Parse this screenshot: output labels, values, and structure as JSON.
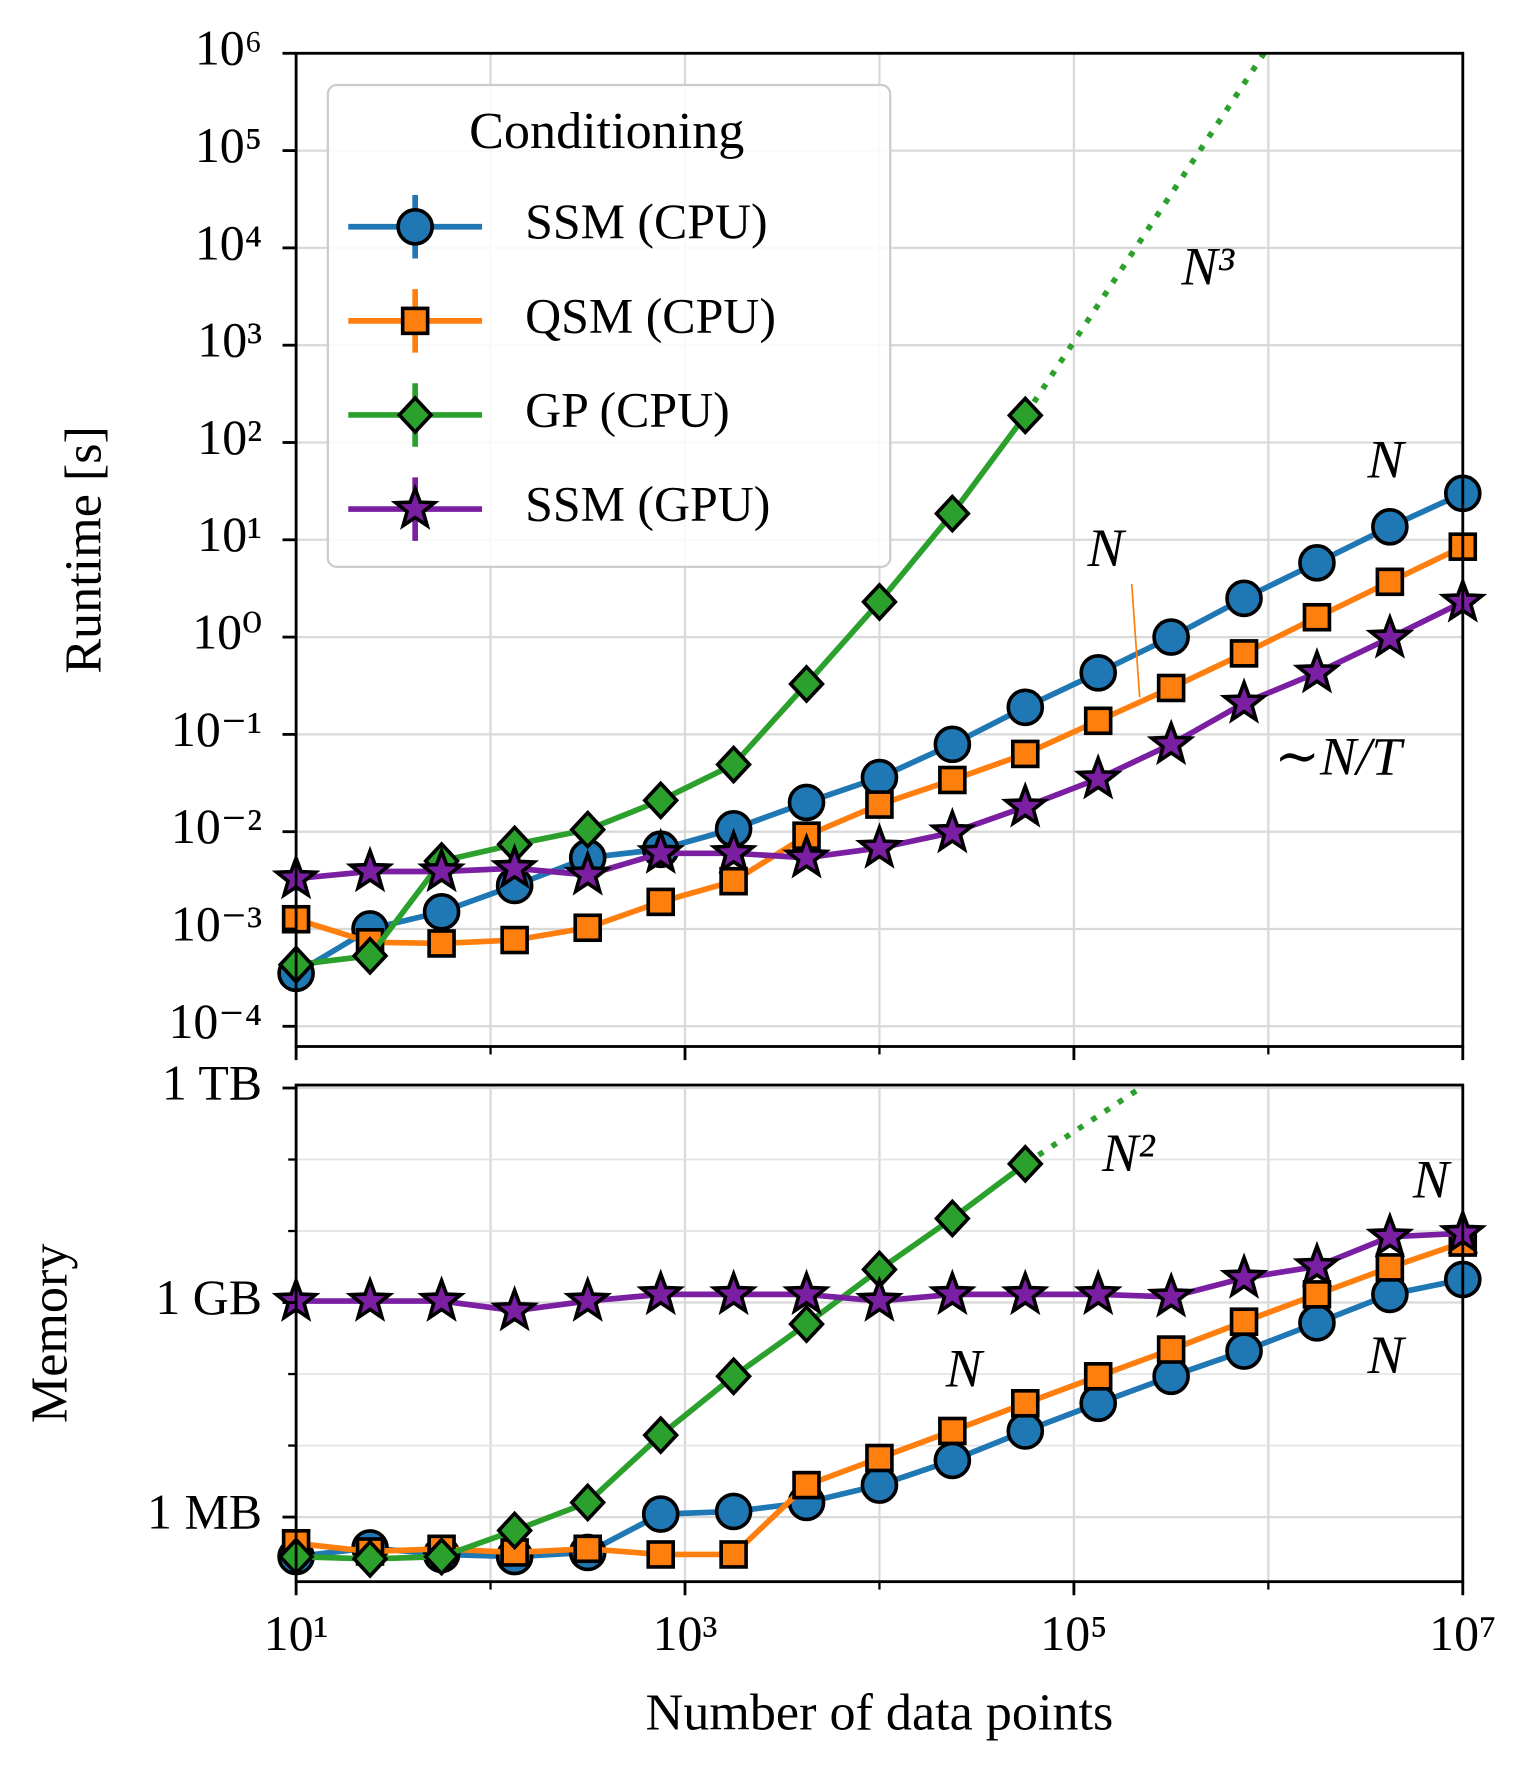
{
  "chart_data": [
    {
      "type": "line",
      "ylabel": "Runtime [s]",
      "xscale": "log",
      "yscale": "log",
      "grid": true,
      "x": [
        10,
        24,
        56,
        133,
        316,
        750,
        1778,
        4217,
        10000,
        23714,
        56234,
        133352,
        316228,
        749894,
        1778279,
        4216965,
        10000000
      ],
      "xlim": [
        10,
        10000000
      ],
      "xticks": [
        10,
        1000,
        100000,
        10000000
      ],
      "xminor": [
        100,
        10000,
        1000000
      ],
      "ylim": [
        6.2e-05,
        1000000
      ],
      "yticks": [
        {
          "value": 0.0001,
          "label": "10⁻⁴"
        },
        {
          "value": 0.001,
          "label": "10⁻³"
        },
        {
          "value": 0.01,
          "label": "10⁻²"
        },
        {
          "value": 0.1,
          "label": "10⁻¹"
        },
        {
          "value": 1,
          "label": "10⁰"
        },
        {
          "value": 10,
          "label": "10¹"
        },
        {
          "value": 100,
          "label": "10²"
        },
        {
          "value": 1000,
          "label": "10³"
        },
        {
          "value": 10000,
          "label": "10⁴"
        },
        {
          "value": 100000,
          "label": "10⁵"
        },
        {
          "value": 1000000,
          "label": "10⁶"
        }
      ],
      "legend": {
        "title": "Conditioning",
        "loc": "upper left"
      },
      "series": [
        {
          "name": "SSM (CPU)",
          "color": "#1f77b4",
          "marker": "circle",
          "values": [
            0.00035,
            0.001,
            0.0015,
            0.0028,
            0.0054,
            0.0066,
            0.0107,
            0.02,
            0.036,
            0.079,
            0.19,
            0.43,
            1.0,
            2.5,
            5.8,
            13.6,
            30
          ]
        },
        {
          "name": "QSM (CPU)",
          "color": "#ff7f0e",
          "marker": "square",
          "values": [
            0.00126,
            0.00073,
            0.00071,
            0.00077,
            0.00103,
            0.0019,
            0.0031,
            0.0091,
            0.019,
            0.034,
            0.063,
            0.138,
            0.3,
            0.68,
            1.6,
            3.7,
            8.5
          ]
        },
        {
          "name": "GP (CPU)",
          "color": "#2ca02c",
          "marker": "diamond",
          "values": [
            0.00043,
            0.00053,
            0.005,
            0.0074,
            0.0105,
            0.021,
            0.049,
            0.33,
            2.3,
            18.6,
            190,
            null,
            null,
            null,
            null,
            null,
            null
          ],
          "fit": {
            "x": [
              56234,
              950000
            ],
            "values": [
              190,
              1000000
            ]
          }
        },
        {
          "name": "SSM (GPU)",
          "color": "#7b1fa2",
          "marker": "star",
          "values": [
            0.0033,
            0.0039,
            0.0039,
            0.0042,
            0.0036,
            0.006,
            0.006,
            0.0054,
            0.0068,
            0.0098,
            0.018,
            0.035,
            0.079,
            0.21,
            0.43,
            0.98,
            2.3
          ]
        }
      ],
      "annotations": [
        {
          "text": "N",
          "color": "#1f77b4"
        },
        {
          "text": "N",
          "color": "#ff7f0e"
        },
        {
          "text": "N³",
          "color": "#2ca02c"
        },
        {
          "text": "∼N/T",
          "color": "#7b1fa2"
        }
      ]
    },
    {
      "type": "line",
      "ylabel": "Memory",
      "xlabel": "Number of data points",
      "xscale": "log",
      "yscale": "log",
      "grid": true,
      "x": [
        10,
        24,
        56,
        133,
        316,
        750,
        1778,
        4217,
        10000,
        23714,
        56234,
        133352,
        316228,
        749894,
        1778279,
        4216965,
        10000000
      ],
      "xlim": [
        10,
        10000000
      ],
      "xticks": [
        {
          "value": 10,
          "label": "10¹"
        },
        {
          "value": 1000,
          "label": "10³"
        },
        {
          "value": 100000,
          "label": "10⁵"
        },
        {
          "value": 10000000,
          "label": "10⁷"
        }
      ],
      "xminor": [
        100,
        10000,
        1000000
      ],
      "ylim": [
        125000,
        1100000000000
      ],
      "yticks": [
        {
          "value": 1000000,
          "label": "1 MB"
        },
        {
          "value": 1000000000,
          "label": "1 GB"
        },
        {
          "value": 1000000000000,
          "label": "1 TB"
        }
      ],
      "yminor": [
        10000000,
        100000000,
        10000000000,
        100000000000
      ],
      "series": [
        {
          "color": "#1f77b4",
          "marker": "circle",
          "values": [
            280000.0,
            370000.0,
            300000.0,
            280000.0,
            320000.0,
            1100000.0,
            1200000.0,
            1600000.0,
            2800000.0,
            6200000.0,
            16000000.0,
            39000000.0,
            93000000.0,
            210000000.0,
            520000000.0,
            1300000000.0,
            2100000000.0
          ]
        },
        {
          "color": "#ff7f0e",
          "marker": "square",
          "values": [
            430000.0,
            330000.0,
            360000.0,
            320000.0,
            360000.0,
            300000.0,
            300000.0,
            2800000.0,
            6700000.0,
            16000000.0,
            39000000.0,
            93000000.0,
            220000000.0,
            540000000.0,
            1300000000.0,
            3100000000.0,
            6900000000.0
          ]
        },
        {
          "color": "#2ca02c",
          "marker": "diamond",
          "values": [
            280000.0,
            260000.0,
            280000.0,
            650000.0,
            1600000.0,
            14000000.0,
            93000000.0,
            500000000.0,
            2900000000.0,
            15000000000.0,
            87000000000.0,
            null,
            null,
            null,
            null,
            null,
            null
          ],
          "fit": {
            "x": [
              56234,
              220000
            ],
            "values": [
              87000000000.0,
              1000000000000.0
            ]
          }
        },
        {
          "color": "#7b1fa2",
          "marker": "star",
          "values": [
            1050000000.0,
            1050000000.0,
            1050000000.0,
            770000000.0,
            1050000000.0,
            1300000000.0,
            1300000000.0,
            1300000000.0,
            1050000000.0,
            1300000000.0,
            1300000000.0,
            1300000000.0,
            1200000000.0,
            2200000000.0,
            3200000000.0,
            8300000000.0,
            9300000000.0
          ]
        }
      ],
      "annotations": [
        {
          "text": "N",
          "color": "#7b1fa2"
        },
        {
          "text": "N",
          "color": "#1f77b4"
        },
        {
          "text": "N",
          "color": "#ff7f0e"
        },
        {
          "text": "N²",
          "color": "#2ca02c"
        }
      ]
    }
  ]
}
